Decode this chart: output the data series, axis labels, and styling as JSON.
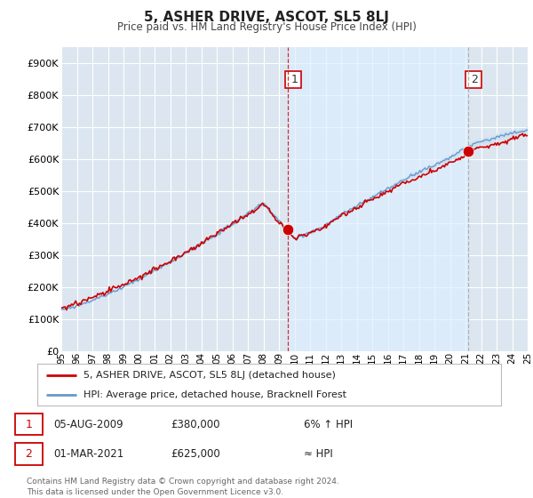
{
  "title": "5, ASHER DRIVE, ASCOT, SL5 8LJ",
  "subtitle": "Price paid vs. HM Land Registry's House Price Index (HPI)",
  "ylim": [
    0,
    950000
  ],
  "yticks": [
    0,
    100000,
    200000,
    300000,
    400000,
    500000,
    600000,
    700000,
    800000,
    900000
  ],
  "ytick_labels": [
    "£0",
    "£100K",
    "£200K",
    "£300K",
    "£400K",
    "£500K",
    "£600K",
    "£700K",
    "£800K",
    "£900K"
  ],
  "bg_color": "#ffffff",
  "plot_bg_color": "#dce6f0",
  "grid_color": "#ffffff",
  "sale1_t": 14.58,
  "sale1_price": 380000,
  "sale2_t": 26.17,
  "sale2_price": 625000,
  "property_color": "#cc0000",
  "hpi_color": "#6699cc",
  "hpi_fill_color": "#c8ddf0",
  "shade_color": "#ddeeff",
  "legend_property": "5, ASHER DRIVE, ASCOT, SL5 8LJ (detached house)",
  "legend_hpi": "HPI: Average price, detached house, Bracknell Forest",
  "annotation1_date": "05-AUG-2009",
  "annotation1_price": "£380,000",
  "annotation1_hpi": "6% ↑ HPI",
  "annotation2_date": "01-MAR-2021",
  "annotation2_price": "£625,000",
  "annotation2_hpi": "≈ HPI",
  "footer": "Contains HM Land Registry data © Crown copyright and database right 2024.\nThis data is licensed under the Open Government Licence v3.0."
}
